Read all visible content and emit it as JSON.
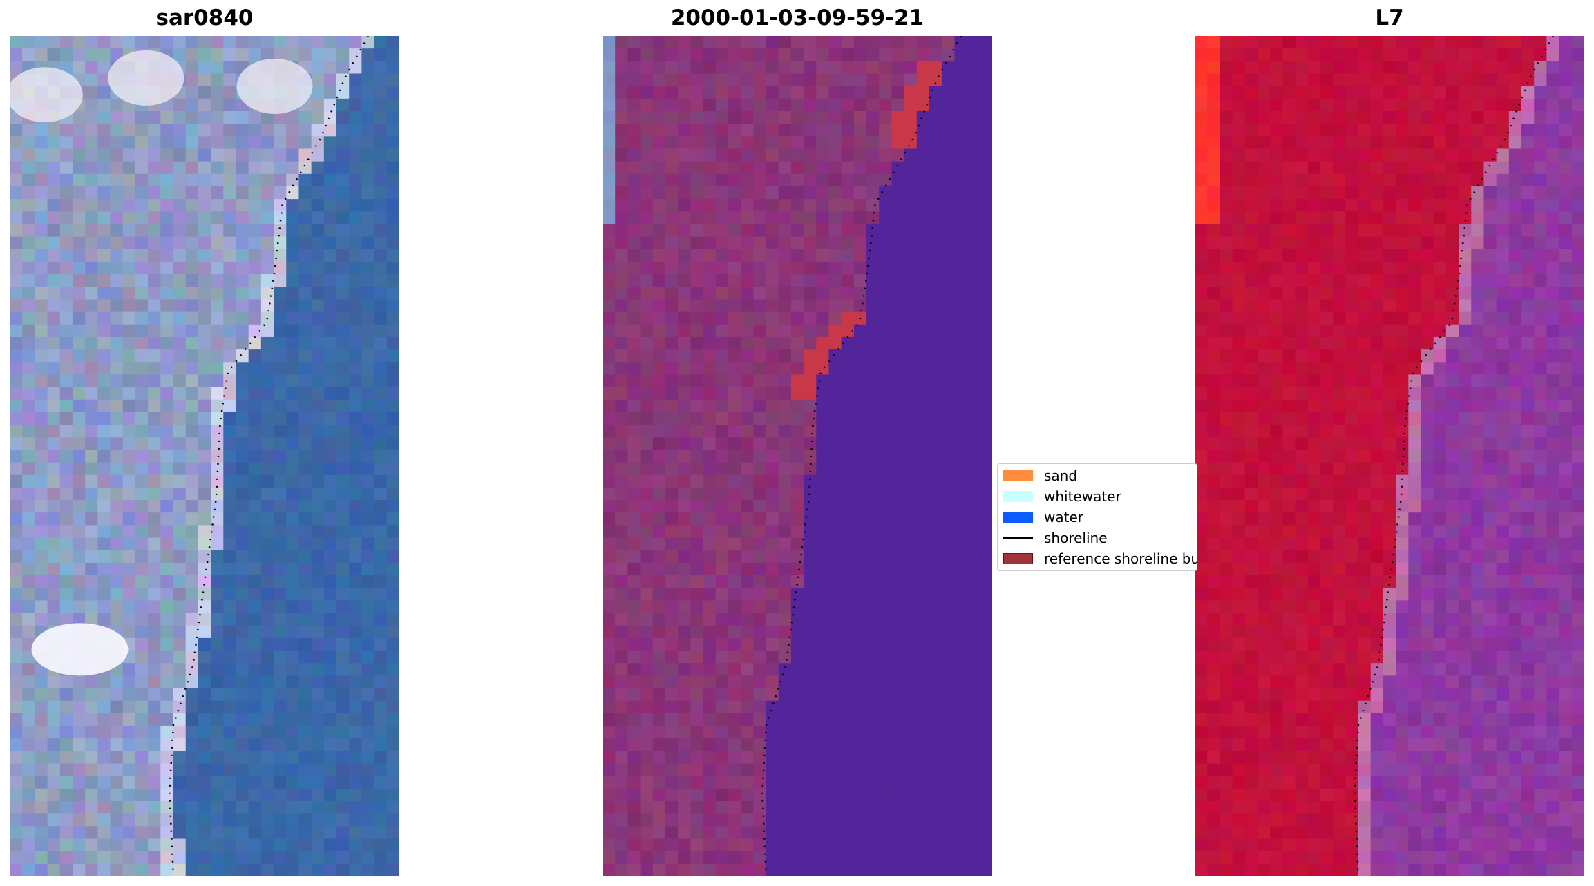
{
  "panels": [
    {
      "title": "sar0840",
      "style": "rgb"
    },
    {
      "title": "2000-01-03-09-59-21",
      "style": "classified"
    },
    {
      "title": "L7",
      "style": "mndwi"
    }
  ],
  "legend": [
    {
      "label": "sand",
      "kind": "patch",
      "color": "#ff8c3c"
    },
    {
      "label": "whitewater",
      "kind": "patch",
      "color": "#c8ffff"
    },
    {
      "label": "water",
      "kind": "patch",
      "color": "#0a5cff"
    },
    {
      "label": "shoreline",
      "kind": "line",
      "color": "#000000"
    },
    {
      "label": "reference shoreline buffer",
      "kind": "patch",
      "color": "#a0343a"
    }
  ],
  "colors": {
    "rgb_water": "#3b68a8",
    "rgb_land": "#8e9cc4",
    "rgb_white": "#f2eef4",
    "class_land": "#8a3678",
    "class_water": "#54249a",
    "class_buffer": "#c83848",
    "mndwi_land": "#c2103c",
    "mndwi_water": "#8e3aa0",
    "mndwi_bright": "#ff2a2a"
  }
}
